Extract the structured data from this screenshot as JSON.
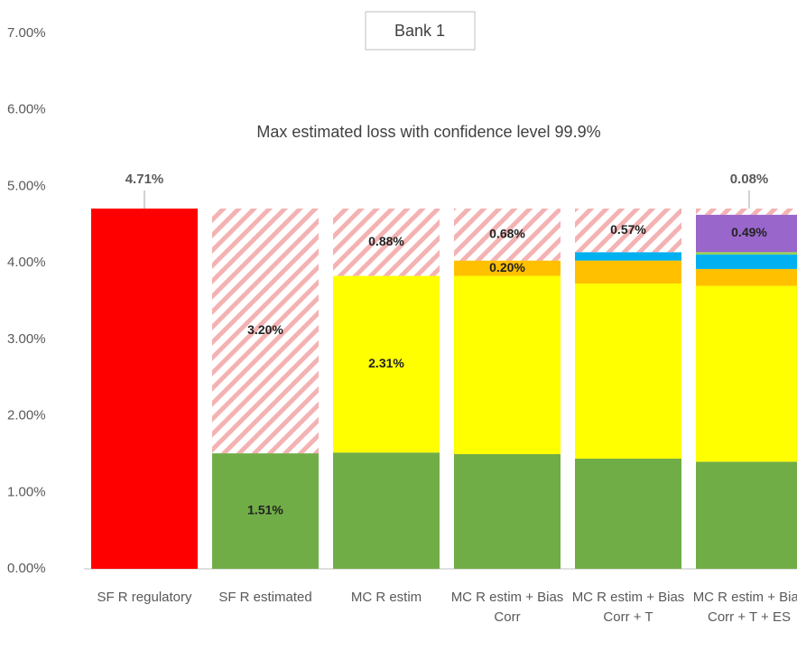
{
  "chart_data": {
    "type": "stacked_bar",
    "title": "Bank 1",
    "subtitle": "Max estimated loss with confidence level 99.9%",
    "categories": [
      "SF R regulatory",
      "SF R estimated",
      "MC R estim",
      "MC R estim + Bias Corr",
      "MC R estim + Bias Corr + T",
      "MC R estim + Bias Corr + T + ES"
    ],
    "series": [
      {
        "color": "#ff0000",
        "label_position": "above",
        "values": [
          4.71,
          null,
          null,
          null,
          null,
          null
        ],
        "value_labels": [
          "4.71%",
          null,
          null,
          null,
          null,
          null
        ]
      },
      {
        "color": "#70ad47",
        "values": [
          null,
          1.51,
          1.52,
          1.5,
          1.44,
          1.4
        ],
        "value_labels": [
          null,
          "1.51%",
          null,
          null,
          null,
          null
        ]
      },
      {
        "color": "#ffff00",
        "values": [
          null,
          null,
          2.31,
          2.33,
          2.29,
          2.3
        ],
        "value_labels": [
          null,
          null,
          "2.31%",
          null,
          null,
          null
        ]
      },
      {
        "color": "#ffc000",
        "values": [
          null,
          null,
          null,
          0.2,
          0.3,
          0.22
        ],
        "value_labels": [
          null,
          null,
          null,
          "0.20%",
          null,
          null
        ]
      },
      {
        "color": "#00b0f0",
        "values": [
          null,
          null,
          null,
          null,
          0.11,
          0.19
        ],
        "value_labels": [
          null,
          null,
          null,
          null,
          "0.11%",
          null
        ]
      },
      {
        "color": "#92d050",
        "values": [
          null,
          null,
          null,
          null,
          null,
          0.03
        ],
        "value_labels": [
          null,
          null,
          null,
          null,
          null,
          null
        ]
      },
      {
        "color": "#9966cc",
        "values": [
          null,
          null,
          null,
          null,
          null,
          0.49
        ],
        "value_labels": [
          null,
          null,
          null,
          null,
          null,
          "0.49%"
        ]
      },
      {
        "color": "#f4b2b2",
        "pattern": "hatch",
        "values": [
          null,
          3.2,
          0.88,
          0.68,
          0.57,
          0.08
        ],
        "value_labels": [
          null,
          "3.20%",
          "0.88%",
          "0.68%",
          "0.57%",
          "0.08%"
        ]
      }
    ],
    "ylim": [
      0,
      7
    ],
    "yticks": [
      {
        "value": 0,
        "label": "0.00%"
      },
      {
        "value": 1,
        "label": "1.00%"
      },
      {
        "value": 2,
        "label": "2.00%"
      },
      {
        "value": 3,
        "label": "3.00%"
      },
      {
        "value": 4,
        "label": "4.00%"
      },
      {
        "value": 5,
        "label": "5.00%"
      },
      {
        "value": 6,
        "label": "6.00%"
      },
      {
        "value": 7,
        "label": "7.00%"
      }
    ],
    "grid": false
  }
}
